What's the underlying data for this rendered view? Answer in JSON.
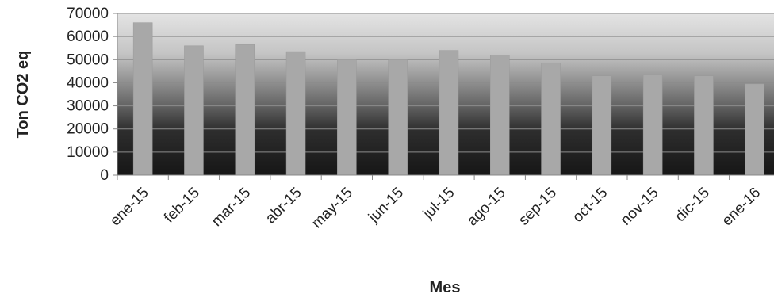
{
  "chart_data": {
    "type": "bar",
    "title": "",
    "xlabel": "Mes",
    "ylabel": "Ton CO2 eq",
    "categories": [
      "ene-15",
      "feb-15",
      "mar-15",
      "abr-15",
      "may-15",
      "jun-15",
      "jul-15",
      "ago-15",
      "sep-15",
      "oct-15",
      "nov-15",
      "dic-15",
      "ene-16"
    ],
    "values": [
      66000,
      56000,
      56500,
      53500,
      50000,
      50000,
      54000,
      52000,
      48500,
      43000,
      43500,
      43000,
      39500
    ],
    "yticks": [
      "0",
      "10000",
      "20000",
      "30000",
      "40000",
      "50000",
      "60000",
      "70000"
    ],
    "ylim": [
      0,
      70000
    ],
    "grid": true,
    "legend": "none",
    "colors": {
      "bar": "#a8a8a8",
      "plot_bg_top": "#e2e2e2",
      "plot_bg_bottom": "#1a1a1a",
      "grid": "#8c8c8c"
    }
  }
}
